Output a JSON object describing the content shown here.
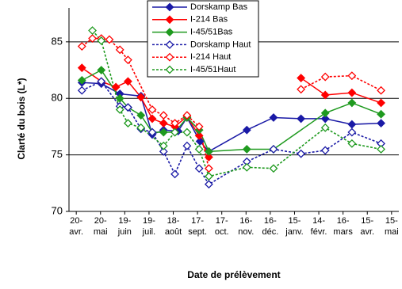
{
  "chart_data": {
    "type": "line",
    "x_label": "Date de prélèvement",
    "y_label": "Clarté du bois (L*)",
    "xlim": [
      -9,
      399
    ],
    "xticks": [
      {
        "value": 0,
        "label": "20-avr."
      },
      {
        "value": 30,
        "label": "20-mai"
      },
      {
        "value": 60,
        "label": "19-juin"
      },
      {
        "value": 90,
        "label": "19-juil."
      },
      {
        "value": 120,
        "label": "18-août"
      },
      {
        "value": 150,
        "label": "17-sept."
      },
      {
        "value": 180,
        "label": "17-oct."
      },
      {
        "value": 210,
        "label": "16-nov."
      },
      {
        "value": 240,
        "label": "16-déc."
      },
      {
        "value": 270,
        "label": "15-janv."
      },
      {
        "value": 300,
        "label": "14-févr."
      },
      {
        "value": 330,
        "label": "16-mars"
      },
      {
        "value": 360,
        "label": "15-avr."
      },
      {
        "value": 390,
        "label": "15-mai"
      }
    ],
    "ylim": [
      70,
      88
    ],
    "yticks": [
      70,
      75,
      80,
      85
    ],
    "grid": true,
    "legend": "top",
    "series": [
      {
        "name": "Dorskamp Bas",
        "color": "#1a1aa6",
        "dashed": false,
        "filled": true,
        "x": [
          7,
          31,
          54,
          80,
          94,
          108,
          126,
          137,
          153,
          164,
          211,
          244,
          278,
          308,
          341,
          377
        ],
        "values": [
          81.4,
          81.3,
          80.4,
          80.2,
          76.8,
          77.2,
          77.1,
          78.3,
          76.2,
          75.3,
          77.2,
          78.3,
          78.2,
          78.2,
          77.7,
          77.8
        ]
      },
      {
        "name": "I-214 Bas",
        "color": "#ff0000",
        "dashed": false,
        "filled": true,
        "x": [
          7,
          31,
          49,
          64,
          80,
          94,
          108,
          122,
          137,
          152,
          164,
          220,
          278,
          308,
          341,
          377
        ],
        "values": [
          82.7,
          81.5,
          81.0,
          81.5,
          80.1,
          78.2,
          77.8,
          77.5,
          78.4,
          76.7,
          74.8,
          null,
          81.8,
          80.3,
          80.5,
          79.6
        ]
      },
      {
        "name": "I-45/51Bas",
        "color": "#1f9a1f",
        "dashed": false,
        "filled": true,
        "x": [
          7,
          31,
          54,
          64,
          80,
          94,
          108,
          122,
          137,
          152,
          164,
          211,
          244,
          308,
          341,
          377
        ],
        "values": [
          81.6,
          82.5,
          80.0,
          79.2,
          78.5,
          77.0,
          77.0,
          77.0,
          78.3,
          77.2,
          75.3,
          75.5,
          75.5,
          78.7,
          79.6,
          78.6
        ]
      },
      {
        "name": "Dorskamp Haut",
        "color": "#1a1aa6",
        "dashed": true,
        "filled": false,
        "x": [
          7,
          31,
          54,
          64,
          80,
          94,
          108,
          122,
          137,
          152,
          164,
          211,
          244,
          278,
          308,
          341,
          377
        ],
        "values": [
          80.7,
          81.5,
          79.3,
          79.2,
          77.3,
          77.0,
          75.3,
          73.3,
          75.8,
          73.8,
          72.4,
          74.4,
          75.5,
          75.1,
          75.4,
          77.0,
          76.0
        ]
      },
      {
        "name": "I-214 Haut",
        "color": "#ff0000",
        "dashed": true,
        "filled": false,
        "x": [
          7,
          20,
          31,
          41,
          54,
          64,
          94,
          108,
          122,
          137,
          152,
          164,
          220,
          278,
          308,
          341,
          377
        ],
        "values": [
          84.6,
          85.3,
          85.3,
          85.2,
          84.3,
          83.4,
          79.0,
          78.5,
          77.8,
          78.5,
          77.5,
          73.8,
          null,
          80.8,
          81.9,
          82.0,
          80.7
        ]
      },
      {
        "name": "I-45/51Haut",
        "color": "#1f9a1f",
        "dashed": true,
        "filled": false,
        "x": [
          20,
          31,
          54,
          64,
          80,
          108,
          122,
          137,
          152,
          164,
          211,
          244,
          308,
          341,
          377
        ],
        "values": [
          86.0,
          85.1,
          79.0,
          77.8,
          77.4,
          75.8,
          77.0,
          77.0,
          75.5,
          73.1,
          73.9,
          73.8,
          77.4,
          76.0,
          75.5
        ]
      }
    ]
  }
}
